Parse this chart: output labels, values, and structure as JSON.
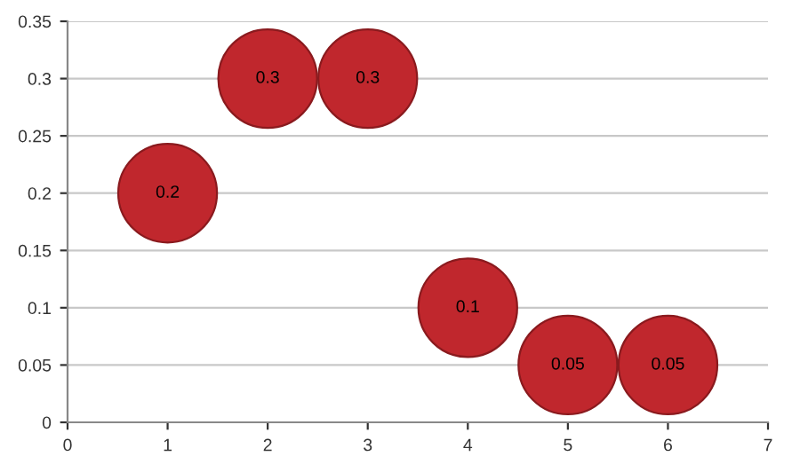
{
  "chart_data": {
    "type": "bubble",
    "x": [
      1,
      2,
      3,
      4,
      5,
      6
    ],
    "values": [
      0.2,
      0.3,
      0.3,
      0.1,
      0.05,
      0.05
    ],
    "sizes": [
      1,
      1,
      1,
      1,
      1,
      1
    ],
    "color": "#c0272d",
    "data_labels": true,
    "xlim": [
      0,
      7
    ],
    "xticks": [
      0,
      1,
      2,
      3,
      4,
      5,
      6,
      7
    ],
    "ylim": [
      0,
      0.35
    ],
    "yticks": [
      0,
      0.05,
      0.1,
      0.15,
      0.2,
      0.25,
      0.3,
      0.35
    ],
    "grid": "y"
  }
}
